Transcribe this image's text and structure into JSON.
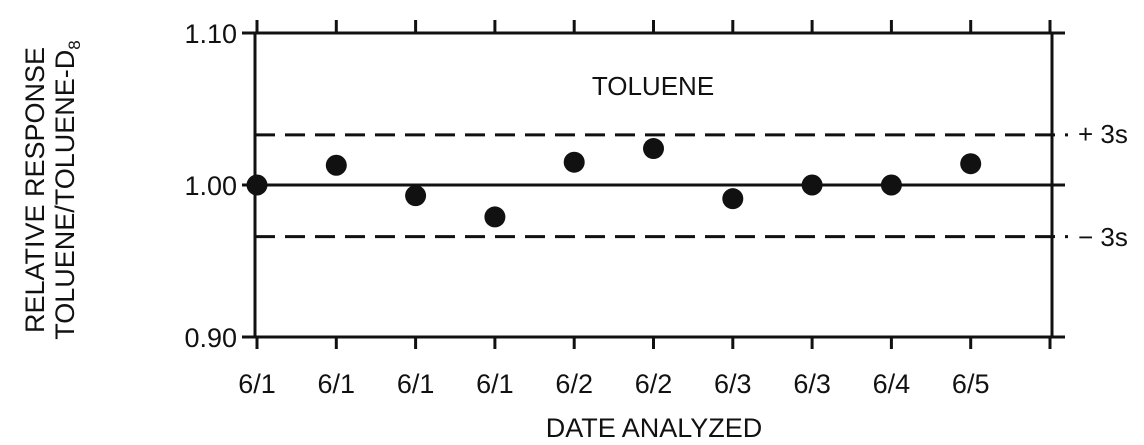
{
  "chart_data": {
    "type": "scatter",
    "title": "TOLUENE",
    "xlabel": "DATE ANALYZED",
    "ylabel_line1": "RELATIVE RESPONSE",
    "ylabel_line2": "TOLUENE/TOLUENE-D",
    "ylabel_subscript": "8",
    "categories": [
      "6/1",
      "6/1",
      "6/1",
      "6/1",
      "6/2",
      "6/2",
      "6/3",
      "6/3",
      "6/4",
      "6/5"
    ],
    "series": [
      {
        "values": [
          1.0,
          1.013,
          0.993,
          0.979,
          1.015,
          1.024,
          0.991,
          1.0,
          1.0,
          1.014
        ]
      }
    ],
    "ylim": [
      0.9,
      1.1
    ],
    "yticks": [
      {
        "value": 0.9,
        "label": "0.90"
      },
      {
        "value": 1.0,
        "label": "1.00"
      },
      {
        "value": 1.1,
        "label": "1.10"
      }
    ],
    "mean": 1.0,
    "upper_limit": {
      "value": 1.033,
      "label": "+ 3s"
    },
    "lower_limit": {
      "value": 0.966,
      "label": "− 3s"
    },
    "grid": false,
    "legend": "none",
    "colors": {
      "ink": "#111111",
      "background": "#ffffff"
    }
  }
}
